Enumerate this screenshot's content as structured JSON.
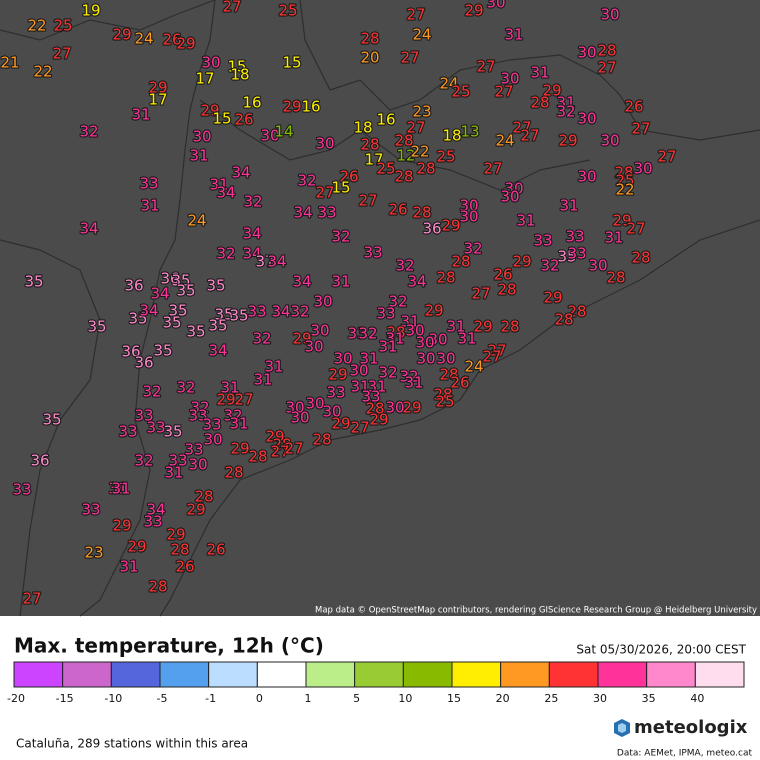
{
  "map": {
    "attribution": "Map data © OpenStreetMap contributors, rendering GIScience Research Group @ Heidelberg University",
    "stations": [
      22,
      25,
      19,
      27,
      25,
      27,
      29,
      30,
      30,
      29,
      24,
      26,
      29,
      28,
      24,
      31,
      21,
      27,
      22,
      30,
      15,
      18,
      15,
      20,
      27,
      30,
      28,
      27,
      17,
      29,
      17,
      27,
      24,
      25,
      30,
      31,
      27,
      29,
      31,
      29,
      15,
      26,
      29,
      16,
      16,
      23,
      28,
      31,
      26,
      32,
      30,
      32,
      30,
      30,
      14,
      18,
      16,
      27,
      28,
      18,
      13,
      27,
      27,
      24,
      29,
      30,
      27,
      30,
      28,
      31,
      17,
      12,
      22,
      25,
      27,
      27,
      30,
      25,
      28,
      28,
      33,
      34,
      31,
      32,
      26,
      27,
      15,
      30,
      28,
      25,
      22,
      34,
      32,
      30,
      30,
      31,
      27,
      26,
      28,
      30,
      30,
      34,
      33,
      24,
      31,
      31,
      29,
      34,
      34,
      32,
      36,
      29,
      27,
      33,
      33,
      31,
      32,
      32,
      34,
      37,
      34,
      33,
      32,
      28,
      29,
      32,
      35,
      33,
      30,
      28,
      35,
      36,
      36,
      35,
      34,
      35,
      35,
      34,
      31,
      34,
      28,
      26,
      27,
      28,
      28,
      32,
      29,
      30,
      35,
      34,
      35,
      35,
      35,
      33,
      34,
      32,
      33,
      29,
      28,
      28,
      35,
      35,
      35,
      35,
      31,
      31,
      29,
      28,
      32,
      29,
      30,
      33,
      32,
      28,
      30,
      31,
      30,
      31,
      30,
      31,
      36,
      35,
      34,
      30,
      27,
      27,
      36,
      31,
      30,
      31,
      30,
      30,
      24,
      29,
      30,
      32,
      32,
      31,
      28,
      26,
      31,
      32,
      32,
      31,
      33,
      31,
      31,
      33,
      28,
      29,
      27,
      25,
      33,
      32,
      33,
      32,
      30,
      30,
      30,
      28,
      30,
      29,
      31,
      33,
      30,
      29,
      27,
      29,
      33,
      33,
      35,
      30,
      29,
      28,
      28,
      29,
      28,
      27,
      27,
      33,
      35,
      36,
      32,
      33,
      30,
      31,
      28,
      33,
      31,
      31,
      28,
      34,
      29,
      33,
      33,
      29,
      29,
      29,
      28,
      26,
      23,
      31,
      26,
      28,
      27
    ]
  },
  "legend": {
    "title": "Max. temperature, 12h (°C)",
    "date": "Sat 05/30/2026, 20:00 CEST",
    "ticks": [
      -20,
      -15,
      -10,
      -5,
      -1,
      0,
      1,
      5,
      10,
      15,
      20,
      25,
      30,
      35,
      40
    ],
    "colors": [
      "#cc44ff",
      "#cc66cc",
      "#5566dd",
      "#55a0ee",
      "#bbddff",
      "#ffffff",
      "#bbee88",
      "#99cc33",
      "#88bb00",
      "#ffee00",
      "#ff9922",
      "#ff3333",
      "#ff3399",
      "#ff88cc",
      "#ffddee"
    ]
  },
  "footer": {
    "region": "Cataluña, 289 stations within this area",
    "brand": "meteologix",
    "credits": "Data: AEMet, IPMA, meteo.cat"
  }
}
